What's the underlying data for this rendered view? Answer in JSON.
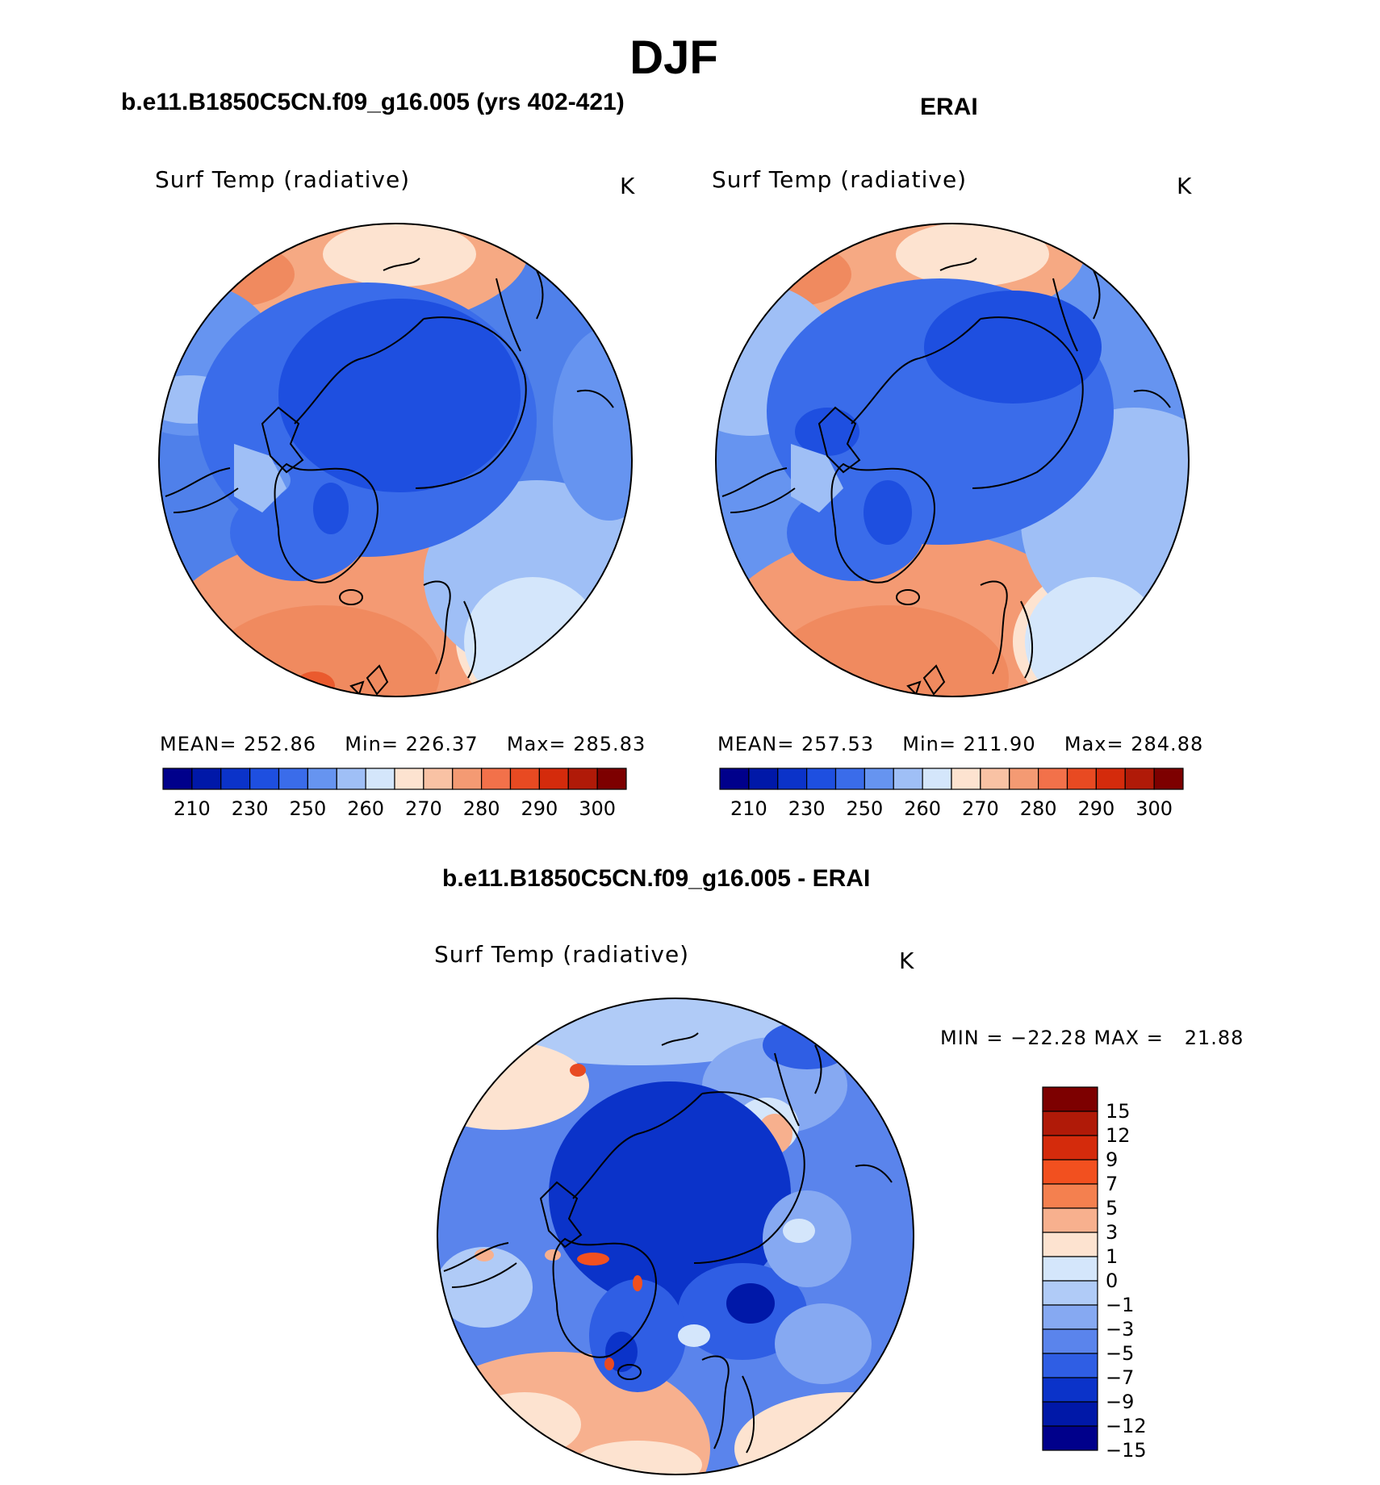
{
  "main_title": "DJF",
  "panels": [
    {
      "title": "b.e11.B1850C5CN.f09_g16.005 (yrs 402-421)",
      "variable": "Surf Temp (radiative)",
      "units": "K",
      "mean_label": "MEAN=",
      "mean": "252.86",
      "min_label": "Min=",
      "min": "226.37",
      "max_label": "Max=",
      "max": "285.83"
    },
    {
      "title": "ERAI",
      "variable": "Surf Temp (radiative)",
      "units": "K",
      "mean_label": "MEAN=",
      "mean": "257.53",
      "min_label": "Min=",
      "min": "211.90",
      "max_label": "Max=",
      "max": "284.88"
    },
    {
      "title": "b.e11.B1850C5CN.f09_g16.005 - ERAI",
      "variable": "Surf Temp (radiative)",
      "units": "K",
      "minmax_text": "MIN = −22.28 MAX =   21.88"
    }
  ],
  "chart_data": [
    {
      "type": "heatmap",
      "projection": "north-polar-stereographic",
      "title": "b.e11.B1850C5CN.f09_g16.005 (yrs 402-421)",
      "variable": "Surf Temp (radiative)",
      "units": "K",
      "mean": 252.86,
      "min": 226.37,
      "max": 285.83,
      "colorbar_ticks": [
        "210",
        "230",
        "250",
        "260",
        "270",
        "280",
        "290",
        "300"
      ],
      "colorbar_colors": [
        "#00008b",
        "#0018a8",
        "#0b33c9",
        "#1e4fe0",
        "#3a6cea",
        "#6694f0",
        "#9fbff6",
        "#d4e6fb",
        "#fde3d0",
        "#f9c2a4",
        "#f49a73",
        "#f2714a",
        "#e84a22",
        "#d42b0c",
        "#b01a08",
        "#7d0000"
      ]
    },
    {
      "type": "heatmap",
      "projection": "north-polar-stereographic",
      "title": "ERAI",
      "variable": "Surf Temp (radiative)",
      "units": "K",
      "mean": 257.53,
      "min": 211.9,
      "max": 284.88,
      "colorbar_ticks": [
        "210",
        "230",
        "250",
        "260",
        "270",
        "280",
        "290",
        "300"
      ],
      "colorbar_colors": [
        "#00008b",
        "#0018a8",
        "#0b33c9",
        "#1e4fe0",
        "#3a6cea",
        "#6694f0",
        "#9fbff6",
        "#d4e6fb",
        "#fde3d0",
        "#f9c2a4",
        "#f49a73",
        "#f2714a",
        "#e84a22",
        "#d42b0c",
        "#b01a08",
        "#7d0000"
      ]
    },
    {
      "type": "heatmap",
      "projection": "north-polar-stereographic",
      "title": "b.e11.B1850C5CN.f09_g16.005 - ERAI",
      "variable": "Surf Temp (radiative)",
      "units": "K",
      "min": -22.28,
      "max": 21.88,
      "colorbar_ticks": [
        "15",
        "12",
        "9",
        "7",
        "5",
        "3",
        "1",
        "0",
        "−1",
        "−3",
        "−5",
        "−7",
        "−9",
        "−12",
        "−15"
      ],
      "colorbar_colors": [
        "#7d0000",
        "#b01a08",
        "#d42b0c",
        "#f2501f",
        "#f4804f",
        "#f7b08e",
        "#fde3d0",
        "#d4e6fb",
        "#b0cbf7",
        "#86a9f2",
        "#5a84ec",
        "#2f5ee4",
        "#0b33c9",
        "#0018a8",
        "#00008b"
      ]
    }
  ]
}
